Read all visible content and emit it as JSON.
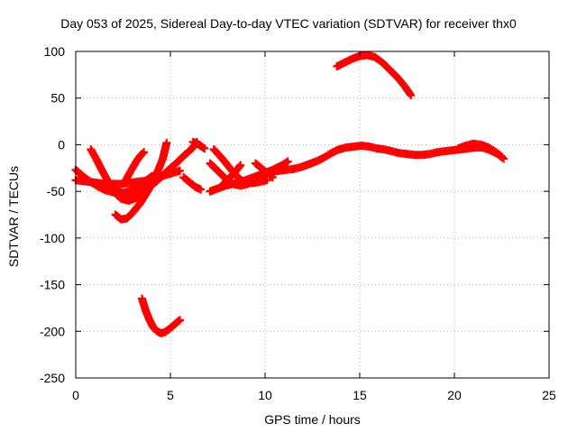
{
  "chart_data": {
    "type": "scatter",
    "title": "Day 053 of 2025, Sidereal Day-to-day VTEC variation (SDTVAR) for receiver thx0",
    "xlabel": "GPS time / hours",
    "ylabel": "SDTVAR / TECUs",
    "xlim": [
      0,
      25
    ],
    "ylim": [
      -250,
      100
    ],
    "xticks": [
      0,
      5,
      10,
      15,
      20,
      25
    ],
    "yticks": [
      -250,
      -200,
      -150,
      -100,
      -50,
      0,
      50,
      100
    ],
    "grid": true,
    "marker": "plus",
    "color": "#ff0000",
    "series": [
      {
        "name": "arc1",
        "x": [
          0.0,
          0.4,
          0.8,
          1.2,
          1.6,
          2.0,
          2.4,
          2.8,
          3.2,
          3.6,
          4.0,
          4.3
        ],
        "y": [
          -27,
          -34,
          -40,
          -45,
          -49,
          -51,
          -52,
          -50,
          -46,
          -40,
          -34,
          -32
        ]
      },
      {
        "name": "arc2",
        "x": [
          0.0,
          0.4,
          0.8,
          1.2,
          1.6,
          2.0,
          2.4,
          2.8,
          3.2,
          3.6,
          4.0,
          4.5,
          5.0,
          5.5
        ],
        "y": [
          -38,
          -39,
          -40,
          -41,
          -42,
          -42,
          -42,
          -41,
          -40,
          -39,
          -37,
          -34,
          -31,
          -28
        ]
      },
      {
        "name": "arc3",
        "x": [
          0.8,
          1.1,
          1.4,
          1.7,
          2.0,
          2.4,
          2.8,
          3.2,
          3.6,
          3.9
        ],
        "y": [
          -5,
          -16,
          -28,
          -39,
          -50,
          -58,
          -60,
          -57,
          -49,
          -42
        ]
      },
      {
        "name": "arc4",
        "x": [
          2.1,
          2.4,
          2.7,
          3.0,
          3.4,
          3.8,
          4.2,
          4.6,
          4.8
        ],
        "y": [
          -75,
          -80,
          -79,
          -73,
          -63,
          -50,
          -35,
          -15,
          2
        ]
      },
      {
        "name": "arc5",
        "x": [
          2.1,
          2.5,
          2.9,
          3.3,
          3.7,
          4.1,
          4.5,
          4.9,
          5.3,
          5.7,
          6.1,
          6.4
        ],
        "y": [
          -48,
          -52,
          -54,
          -52,
          -48,
          -42,
          -35,
          -27,
          -20,
          -12,
          -5,
          3
        ]
      },
      {
        "name": "arc6",
        "x": [
          2.6,
          2.8,
          3.0,
          3.2,
          3.4,
          3.6
        ],
        "y": [
          -40,
          -32,
          -25,
          -18,
          -12,
          -8
        ]
      },
      {
        "name": "arc7",
        "x": [
          3.5,
          3.7,
          3.9,
          4.1,
          4.3,
          4.5,
          4.7,
          4.9,
          5.1,
          5.3,
          5.5
        ],
        "y": [
          -165,
          -178,
          -188,
          -196,
          -200,
          -202,
          -201,
          -198,
          -195,
          -191,
          -188
        ]
      },
      {
        "name": "arc8",
        "x": [
          5.7,
          6.0,
          6.3,
          6.6
        ],
        "y": [
          -35,
          -40,
          -45,
          -48
        ]
      },
      {
        "name": "arc9",
        "x": [
          6.2,
          6.5,
          6.8
        ],
        "y": [
          3,
          0,
          -4
        ]
      },
      {
        "name": "arc10",
        "x": [
          7.1,
          7.5,
          7.9,
          8.3,
          8.7,
          9.1,
          9.5,
          9.9,
          10.3,
          10.7,
          11.1,
          11.5,
          11.9,
          12.3,
          12.7,
          13.1,
          13.5,
          13.9,
          14.3,
          14.7,
          15.1,
          15.5,
          15.9,
          16.3,
          16.7,
          17.1,
          17.5,
          17.9,
          18.3,
          18.7,
          19.1,
          19.5,
          19.9,
          20.3,
          20.7,
          21.1,
          21.5,
          21.9,
          22.3,
          22.6
        ],
        "y": [
          -50,
          -47,
          -44,
          -42,
          -40,
          -37,
          -34,
          -31,
          -29,
          -28,
          -27,
          -26,
          -24,
          -21,
          -18,
          -14,
          -9,
          -5,
          -3,
          -2,
          -1,
          -2,
          -4,
          -5,
          -7,
          -9,
          -10,
          -11,
          -11,
          -10,
          -8,
          -7,
          -6,
          -5,
          -4,
          -3,
          -3,
          -6,
          -10,
          -15
        ]
      },
      {
        "name": "arc11",
        "x": [
          7.1,
          7.5,
          7.9,
          8.3,
          8.7,
          9.1,
          9.5
        ],
        "y": [
          -20,
          -28,
          -36,
          -42,
          -44,
          -42,
          -38
        ]
      },
      {
        "name": "arc12",
        "x": [
          7.3,
          7.7,
          8.1,
          8.5,
          8.9,
          9.3,
          9.7,
          10.1
        ],
        "y": [
          -5,
          -14,
          -24,
          -34,
          -40,
          -41,
          -40,
          -38
        ]
      },
      {
        "name": "arc13",
        "x": [
          7.8,
          8.1,
          8.4,
          8.7
        ],
        "y": [
          -42,
          -36,
          -30,
          -22
        ]
      },
      {
        "name": "arc14",
        "x": [
          9.5,
          9.8,
          10.1,
          10.4
        ],
        "y": [
          -20,
          -25,
          -30,
          -35
        ]
      },
      {
        "name": "arc15",
        "x": [
          10.0,
          10.3,
          10.6,
          10.9,
          11.2
        ],
        "y": [
          -30,
          -28,
          -25,
          -22,
          -18
        ]
      },
      {
        "name": "arc16",
        "x": [
          13.8,
          14.2,
          14.6,
          15.0,
          15.4,
          15.8,
          16.2,
          16.6,
          17.0,
          17.4,
          17.7
        ],
        "y": [
          84,
          88,
          92,
          95,
          96,
          94,
          88,
          80,
          72,
          62,
          53
        ]
      },
      {
        "name": "arc17",
        "x": [
          20.2,
          20.6,
          21.0,
          21.4,
          21.8,
          22.2,
          22.5
        ],
        "y": [
          -4,
          -1,
          1,
          0,
          -3,
          -8,
          -13
        ]
      }
    ]
  }
}
